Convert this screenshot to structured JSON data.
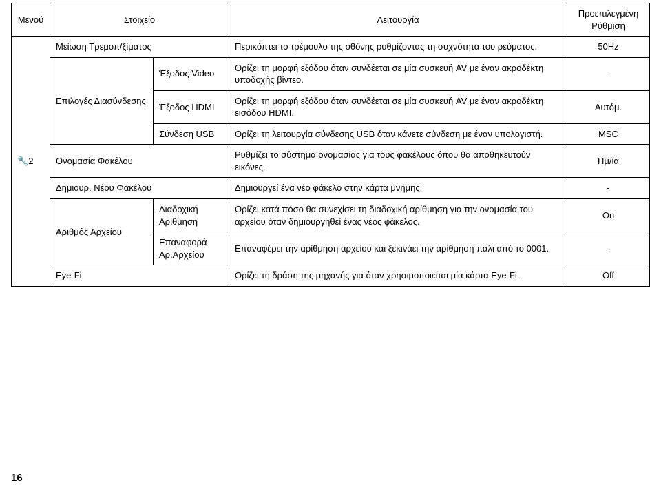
{
  "table": {
    "headers": {
      "menu": "Μενού",
      "item": "Στοιχείο",
      "function": "Λειτουργία",
      "default": "Προεπιλεγμένη Ρύθμιση"
    },
    "menu_label": "2",
    "wrench_glyph": "🔧",
    "rows": [
      {
        "itemA": "Μείωση Τρεμοπ/ξίματος",
        "itemA_colspan": 2,
        "itemB": null,
        "func": "Περικόπτει το τρέμουλο της οθόνης ρυθμίζοντας τη συχνότητα του ρεύματος.",
        "def": "50Hz"
      },
      {
        "itemA": "Επιλογές Διασύνδεσης",
        "itemA_rowspan": 3,
        "itemB": "Έξοδος Video",
        "func": "Ορίζει τη μορφή εξόδου όταν συνδέεται σε μία συσκευή AV με έναν ακροδέκτη υποδοχής βίντεο.",
        "def": "-"
      },
      {
        "itemB": "Έξοδος HDMI",
        "func": "Ορίζει τη μορφή εξόδου όταν συνδέεται σε μία συσκευή AV με έναν ακροδέκτη εισόδου HDMI.",
        "def": "Αυτόμ."
      },
      {
        "itemB": "Σύνδεση USB",
        "func": "Ορίζει τη λειτουργία σύνδεσης USB όταν κάνετε σύνδεση με έναν υπολογιστή.",
        "def": "MSC"
      },
      {
        "itemA": "Ονομασία Φακέλου",
        "itemA_colspan": 2,
        "func": "Ρυθμίζει το σύστημα ονομασίας για τους φακέλους όπου θα αποθηκευτούν εικόνες.",
        "def": "Ημ/ία"
      },
      {
        "itemA": "Δημιουρ. Νέου Φακέλου",
        "itemA_colspan": 2,
        "func": "Δημιουργεί ένα νέο φάκελο στην κάρτα μνήμης.",
        "def": "-"
      },
      {
        "itemA": "Αριθμός Αρχείου",
        "itemA_rowspan": 2,
        "itemB": "Διαδοχική Αρίθμηση",
        "func": "Ορίζει κατά πόσο θα συνεχίσει τη διαδοχική αρίθμηση για την ονομασία του αρχείου όταν δημιουργηθεί ένας νέος φάκελος.",
        "def": "On"
      },
      {
        "itemB": "Επαναφορά Αρ.Αρχείου",
        "func": "Επαναφέρει την αρίθμηση αρχείου και ξεκινάει την αρίθμηση πάλι από το 0001.",
        "def": "-"
      },
      {
        "itemA": "Eye-Fi",
        "itemA_colspan": 2,
        "func": "Ορίζει τη δράση της μηχανής για όταν χρησιμοποιείται μία κάρτα Eye-Fi.",
        "def": "Off"
      }
    ]
  },
  "page_number": "16"
}
